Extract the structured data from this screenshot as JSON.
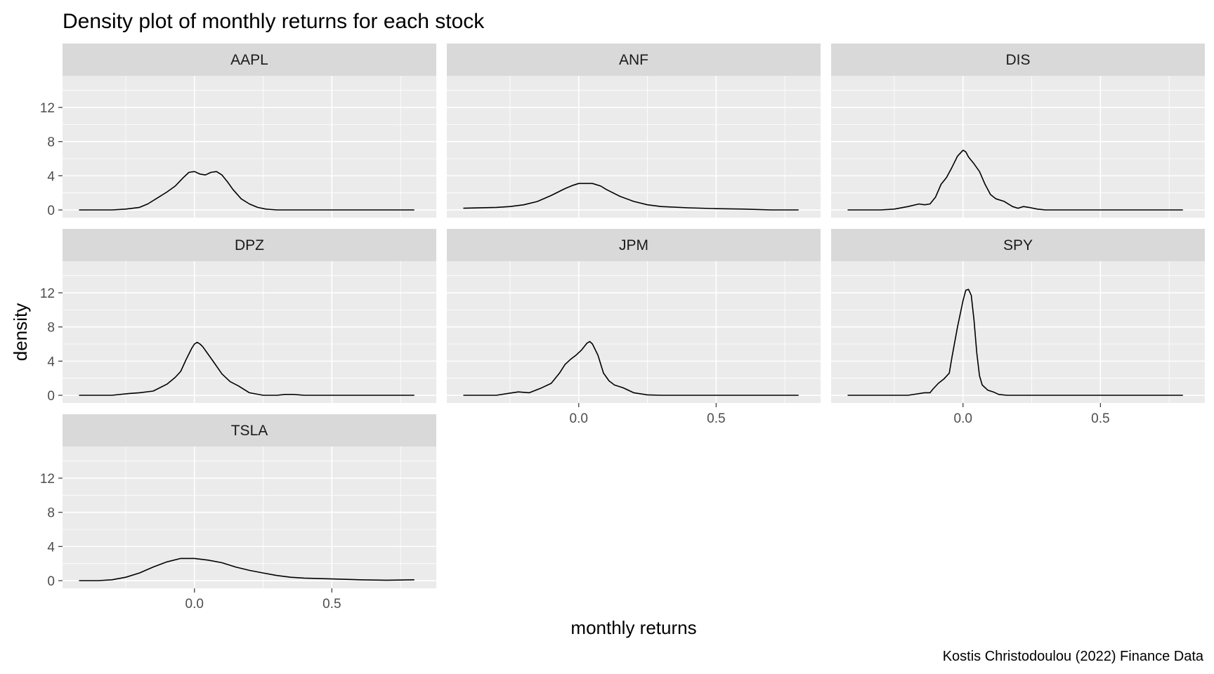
{
  "chart_data": {
    "type": "line",
    "title": "Density plot of monthly returns for each stock",
    "xlabel": "monthly returns",
    "ylabel": "density",
    "caption": "Kostis Christodoulou (2022) Finance Data",
    "xlim": [
      -0.48,
      0.88
    ],
    "ylim": [
      -0.9,
      15.7
    ],
    "x_ticks": [
      0.0,
      0.5
    ],
    "x_tick_labels": [
      "0.0",
      "0.5"
    ],
    "x_minor_ticks": [
      -0.25,
      0.25,
      0.75
    ],
    "y_ticks": [
      0,
      4,
      8,
      12
    ],
    "y_tick_labels": [
      "0",
      "4",
      "8",
      "12"
    ],
    "y_minor_ticks": [
      2,
      6,
      10,
      14
    ],
    "grid": true,
    "facet_layout": {
      "columns": 3,
      "rows": 3
    },
    "colors": {
      "panel_background": "#ebebeb",
      "strip_background": "#d9d9d9",
      "grid": "#ffffff",
      "line": "#000000"
    },
    "panels": [
      {
        "name": "AAPL",
        "x": [
          -0.42,
          -0.3,
          -0.25,
          -0.2,
          -0.17,
          -0.13,
          -0.1,
          -0.07,
          -0.04,
          -0.02,
          0.0,
          0.02,
          0.04,
          0.06,
          0.08,
          0.1,
          0.12,
          0.14,
          0.17,
          0.2,
          0.23,
          0.26,
          0.3,
          0.4,
          0.6,
          0.8
        ],
        "y": [
          0,
          0,
          0.1,
          0.3,
          0.7,
          1.5,
          2.1,
          2.8,
          3.8,
          4.4,
          4.5,
          4.2,
          4.1,
          4.4,
          4.5,
          4.1,
          3.3,
          2.4,
          1.3,
          0.7,
          0.3,
          0.1,
          0,
          0,
          0,
          0
        ]
      },
      {
        "name": "ANF",
        "x": [
          -0.42,
          -0.3,
          -0.25,
          -0.2,
          -0.15,
          -0.1,
          -0.05,
          -0.02,
          0.0,
          0.02,
          0.05,
          0.08,
          0.1,
          0.15,
          0.2,
          0.25,
          0.3,
          0.4,
          0.5,
          0.6,
          0.7,
          0.8
        ],
        "y": [
          0.2,
          0.3,
          0.4,
          0.6,
          1.0,
          1.7,
          2.5,
          2.9,
          3.1,
          3.1,
          3.1,
          2.8,
          2.4,
          1.6,
          1.0,
          0.6,
          0.4,
          0.25,
          0.15,
          0.1,
          0,
          0
        ]
      },
      {
        "name": "DIS",
        "x": [
          -0.42,
          -0.3,
          -0.25,
          -0.2,
          -0.16,
          -0.14,
          -0.12,
          -0.1,
          -0.08,
          -0.06,
          -0.04,
          -0.02,
          0.0,
          0.01,
          0.02,
          0.04,
          0.06,
          0.08,
          0.1,
          0.12,
          0.15,
          0.18,
          0.2,
          0.22,
          0.24,
          0.27,
          0.3,
          0.4,
          0.6,
          0.8
        ],
        "y": [
          0,
          0,
          0.1,
          0.4,
          0.7,
          0.6,
          0.7,
          1.5,
          3.0,
          3.8,
          5.0,
          6.3,
          7.0,
          6.8,
          6.2,
          5.4,
          4.5,
          3.0,
          1.8,
          1.3,
          1.0,
          0.4,
          0.2,
          0.4,
          0.3,
          0.1,
          0,
          0,
          0,
          0
        ]
      },
      {
        "name": "DPZ",
        "x": [
          -0.42,
          -0.3,
          -0.24,
          -0.2,
          -0.15,
          -0.1,
          -0.07,
          -0.05,
          -0.03,
          -0.01,
          0.0,
          0.01,
          0.02,
          0.03,
          0.05,
          0.07,
          0.1,
          0.13,
          0.16,
          0.2,
          0.25,
          0.3,
          0.33,
          0.36,
          0.4,
          0.5,
          0.6,
          0.8
        ],
        "y": [
          0,
          0,
          0.2,
          0.3,
          0.5,
          1.3,
          2.1,
          2.8,
          4.2,
          5.5,
          6.0,
          6.2,
          6.0,
          5.7,
          4.8,
          3.9,
          2.5,
          1.6,
          1.1,
          0.3,
          0,
          0,
          0.1,
          0.1,
          0,
          0,
          0,
          0
        ]
      },
      {
        "name": "JPM",
        "x": [
          -0.42,
          -0.3,
          -0.26,
          -0.22,
          -0.18,
          -0.14,
          -0.1,
          -0.07,
          -0.05,
          -0.03,
          -0.01,
          0.01,
          0.03,
          0.04,
          0.05,
          0.07,
          0.09,
          0.11,
          0.13,
          0.16,
          0.2,
          0.25,
          0.3,
          0.4,
          0.6,
          0.8
        ],
        "y": [
          0,
          0,
          0.2,
          0.4,
          0.3,
          0.8,
          1.4,
          2.6,
          3.6,
          4.2,
          4.7,
          5.3,
          6.1,
          6.3,
          6.0,
          4.7,
          2.6,
          1.7,
          1.2,
          0.9,
          0.3,
          0.05,
          0,
          0,
          0,
          0
        ]
      },
      {
        "name": "SPY",
        "x": [
          -0.42,
          -0.2,
          -0.14,
          -0.12,
          -0.11,
          -0.09,
          -0.07,
          -0.05,
          -0.04,
          -0.02,
          0.0,
          0.01,
          0.02,
          0.03,
          0.04,
          0.05,
          0.06,
          0.07,
          0.09,
          0.11,
          0.13,
          0.16,
          0.2,
          0.4,
          0.6,
          0.8
        ],
        "y": [
          0,
          0,
          0.3,
          0.3,
          0.7,
          1.4,
          1.9,
          2.6,
          4.5,
          8.0,
          11.1,
          12.3,
          12.4,
          11.7,
          8.8,
          5.0,
          2.3,
          1.2,
          0.6,
          0.4,
          0.1,
          0,
          0,
          0,
          0,
          0
        ]
      },
      {
        "name": "TSLA",
        "x": [
          -0.42,
          -0.35,
          -0.3,
          -0.25,
          -0.2,
          -0.15,
          -0.1,
          -0.05,
          0.0,
          0.05,
          0.1,
          0.15,
          0.2,
          0.25,
          0.3,
          0.35,
          0.4,
          0.5,
          0.6,
          0.7,
          0.8
        ],
        "y": [
          0,
          0,
          0.1,
          0.4,
          0.9,
          1.6,
          2.2,
          2.6,
          2.6,
          2.4,
          2.1,
          1.6,
          1.2,
          0.9,
          0.6,
          0.4,
          0.3,
          0.2,
          0.1,
          0.05,
          0.1
        ]
      }
    ]
  }
}
